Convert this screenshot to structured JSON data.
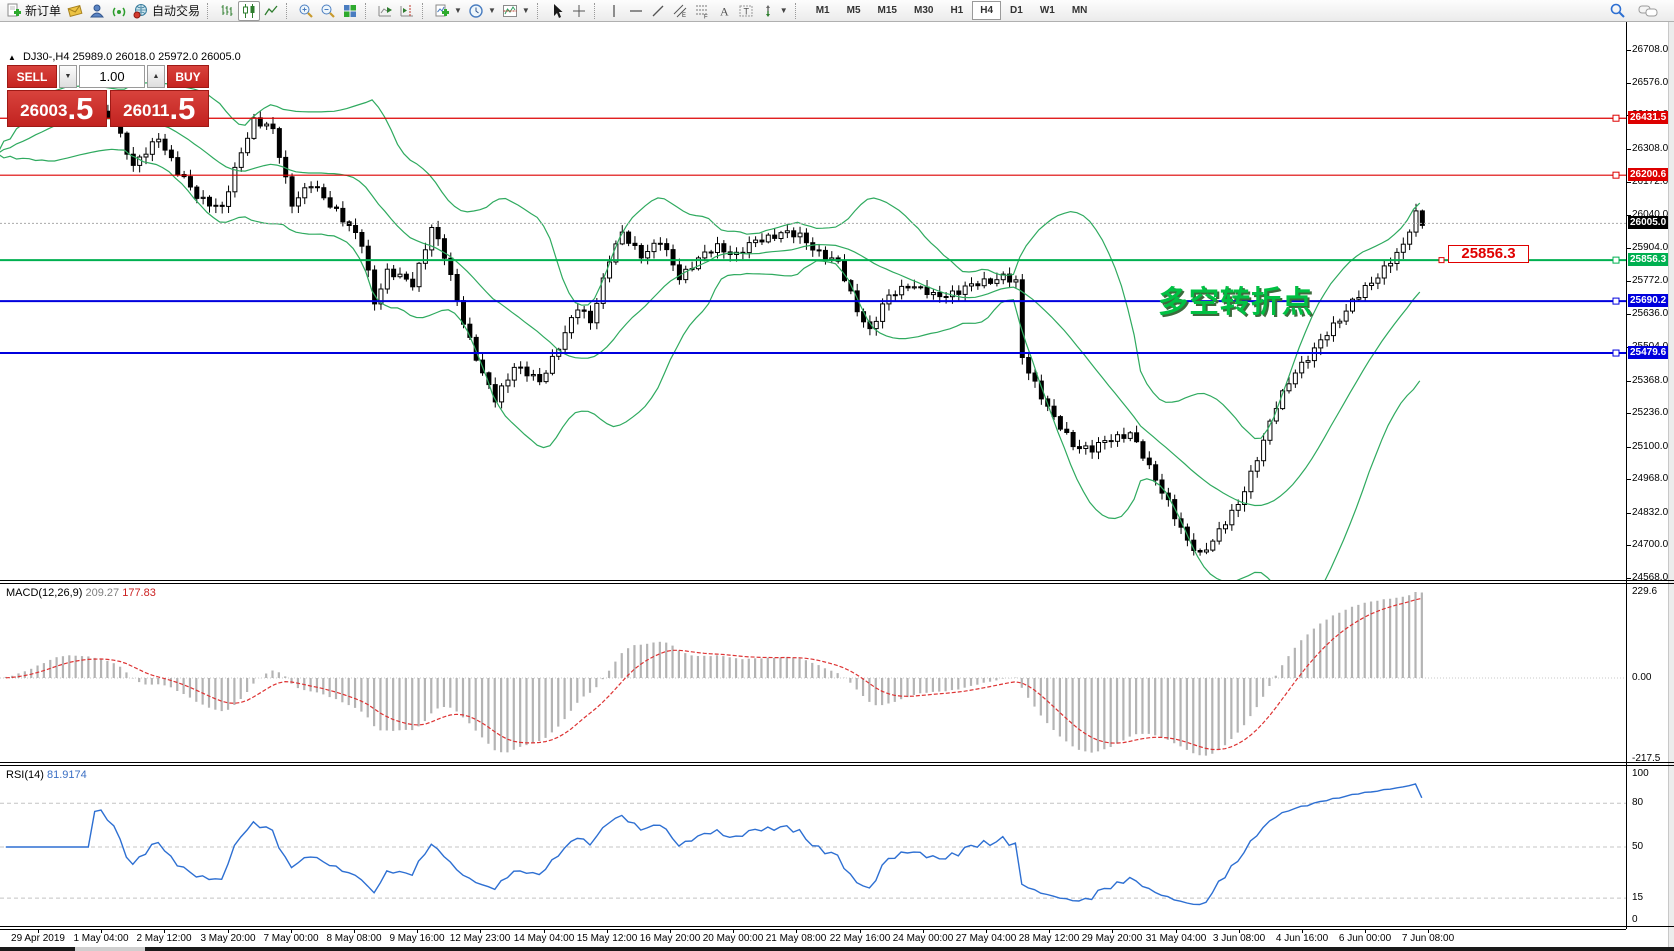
{
  "window": {
    "toolbar": {
      "new_order_label": "新订单",
      "auto_trading_label": "自动交易",
      "timeframes": [
        "M1",
        "M5",
        "M15",
        "M30",
        "H1",
        "H4",
        "D1",
        "W1",
        "MN"
      ],
      "active_timeframe": "H4"
    }
  },
  "chart": {
    "symbol_header": {
      "collapse_arrow": "▲",
      "symbol": "DJ30-,H4",
      "open": "25989.0",
      "high": "26018.0",
      "low": "25972.0",
      "close": "26005.0"
    },
    "trade_panel": {
      "sell_label": "SELL",
      "buy_label": "BUY",
      "volume": "1.00",
      "sell_price_main": "26003",
      "sell_price_big": ".5",
      "buy_price_main": "26011",
      "buy_price_big": ".5"
    },
    "annotation": "多空转折点",
    "price_tag": "25856.3"
  },
  "indicators": {
    "macd": {
      "label": "MACD(12,26,9)",
      "value_main": "209.27",
      "value_signal": "177.83",
      "axis_labels": [
        [
          229.6,
          "229.6"
        ],
        [
          0,
          "0.00"
        ],
        [
          -217.5,
          "-217.5"
        ]
      ]
    },
    "rsi": {
      "label": "RSI(14)",
      "value": "81.9174",
      "axis_labels": [
        [
          100,
          "100"
        ],
        [
          80,
          "80"
        ],
        [
          50,
          "50"
        ],
        [
          15,
          "15"
        ],
        [
          0,
          "0"
        ]
      ],
      "dashed_levels": [
        80,
        50,
        15
      ]
    }
  },
  "chart_data": {
    "type": "candlestick",
    "symbol": "DJ30-",
    "timeframe": "H4",
    "current_price": 26005.0,
    "price_axis_ticks": [
      26708.0,
      26576.0,
      26444.0,
      26308.0,
      26172.0,
      26040.0,
      25904.0,
      25772.0,
      25636.0,
      25504.0,
      25368.0,
      25236.0,
      25100.0,
      24968.0,
      24832.0,
      24700.0,
      24568.0
    ],
    "hlines": [
      {
        "price": 26431.5,
        "color": "#dd0000",
        "width": 1.2
      },
      {
        "price": 26200.6,
        "color": "#dd0000",
        "width": 1.2
      },
      {
        "price": 25856.3,
        "color": "#00b050",
        "width": 2
      },
      {
        "price": 25690.2,
        "color": "#0000dd",
        "width": 2
      },
      {
        "price": 25479.6,
        "color": "#0000dd",
        "width": 2
      }
    ],
    "bollinger": {
      "period": 20,
      "deviation": 2,
      "color": "#2faa5f"
    },
    "candle_count": 212,
    "pre_candles": 13,
    "close_waypoints": [
      [
        -13,
        26280
      ],
      [
        -8,
        26420
      ],
      [
        -4,
        26500
      ],
      [
        0,
        26472
      ],
      [
        5,
        26430
      ],
      [
        8,
        26230
      ],
      [
        12,
        26360
      ],
      [
        15,
        26210
      ],
      [
        18,
        26120
      ],
      [
        22,
        26060
      ],
      [
        25,
        26300
      ],
      [
        27,
        26425
      ],
      [
        30,
        26380
      ],
      [
        33,
        26090
      ],
      [
        36,
        26160
      ],
      [
        40,
        26060
      ],
      [
        44,
        25920
      ],
      [
        46,
        25690
      ],
      [
        48,
        25810
      ],
      [
        52,
        25760
      ],
      [
        55,
        25990
      ],
      [
        57,
        25870
      ],
      [
        60,
        25610
      ],
      [
        63,
        25390
      ],
      [
        65,
        25290
      ],
      [
        68,
        25430
      ],
      [
        72,
        25360
      ],
      [
        75,
        25510
      ],
      [
        78,
        25660
      ],
      [
        80,
        25610
      ],
      [
        83,
        25860
      ],
      [
        85,
        25960
      ],
      [
        88,
        25880
      ],
      [
        91,
        25930
      ],
      [
        94,
        25790
      ],
      [
        97,
        25860
      ],
      [
        100,
        25910
      ],
      [
        103,
        25880
      ],
      [
        106,
        25930
      ],
      [
        110,
        25970
      ],
      [
        113,
        25950
      ],
      [
        116,
        25890
      ],
      [
        119,
        25840
      ],
      [
        122,
        25660
      ],
      [
        124,
        25570
      ],
      [
        127,
        25710
      ],
      [
        130,
        25760
      ],
      [
        134,
        25710
      ],
      [
        138,
        25730
      ],
      [
        142,
        25770
      ],
      [
        145,
        25790
      ],
      [
        147,
        25760
      ],
      [
        148,
        25460
      ],
      [
        150,
        25360
      ],
      [
        153,
        25210
      ],
      [
        156,
        25110
      ],
      [
        159,
        25090
      ],
      [
        162,
        25130
      ],
      [
        165,
        25160
      ],
      [
        168,
        25010
      ],
      [
        171,
        24880
      ],
      [
        174,
        24710
      ],
      [
        176,
        24660
      ],
      [
        179,
        24760
      ],
      [
        182,
        24860
      ],
      [
        185,
        25060
      ],
      [
        188,
        25260
      ],
      [
        191,
        25410
      ],
      [
        194,
        25490
      ],
      [
        197,
        25590
      ],
      [
        200,
        25690
      ],
      [
        203,
        25760
      ],
      [
        206,
        25860
      ],
      [
        208,
        25910
      ],
      [
        210,
        26040
      ],
      [
        211,
        26005
      ]
    ],
    "macd_axis_range": {
      "max": 229.6,
      "min": -217.5
    },
    "macd_params": [
      12,
      26,
      9
    ],
    "macd_values": [
      209.27,
      177.83
    ],
    "rsi_period": 14,
    "rsi_value": 81.9174,
    "date_labels": [
      "29 Apr 2019",
      "1 May 04:00",
      "2 May 12:00",
      "3 May 20:00",
      "7 May 00:00",
      "8 May 08:00",
      "9 May 16:00",
      "12 May 23:00",
      "14 May 04:00",
      "15 May 12:00",
      "16 May 20:00",
      "20 May 00:00",
      "21 May 08:00",
      "22 May 16:00",
      "24 May 00:00",
      "27 May 04:00",
      "28 May 12:00",
      "29 May 20:00",
      "31 May 04:00",
      "3 Jun 08:00",
      "4 Jun 16:00",
      "6 Jun 00:00",
      "7 Jun 08:00"
    ]
  },
  "colors": {
    "bull_candle": "#ffffff",
    "bear_candle": "#000000",
    "bollinger": "#2faa5f",
    "macd_histogram": "#b4b4b4",
    "macd_signal": "#dd3333",
    "rsi_line": "#2d6fd2",
    "trade_red": "#c62420"
  }
}
